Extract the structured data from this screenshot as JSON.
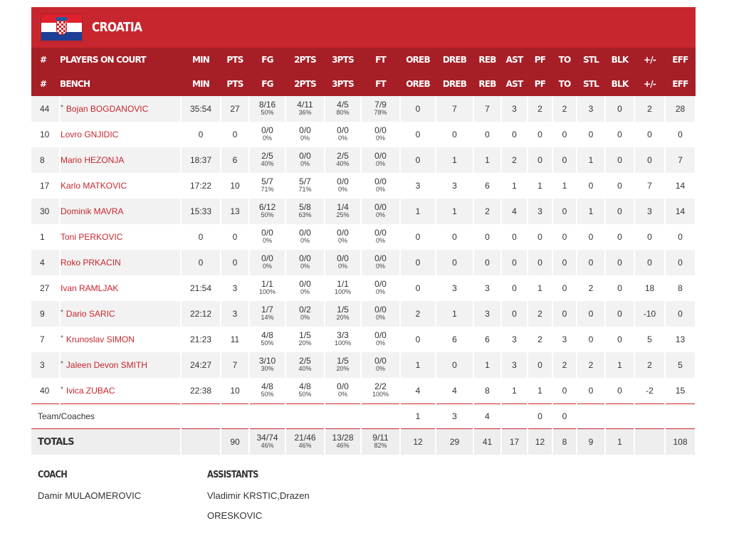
{
  "team": {
    "name": "CROATIA",
    "flag_colors": [
      "#e0202d",
      "#ffffff",
      "#1c3f94"
    ]
  },
  "columns": [
    "MIN",
    "PTS",
    "FG",
    "2PTS",
    "3PTS",
    "FT",
    "OREB",
    "DREB",
    "REB",
    "AST",
    "PF",
    "TO",
    "STL",
    "BLK",
    "+/-",
    "EFF"
  ],
  "header_rows": [
    {
      "hash": "#",
      "label": "PLAYERS ON COURT"
    },
    {
      "hash": "#",
      "label": "BENCH"
    }
  ],
  "players": [
    {
      "num": "44",
      "starter": true,
      "name": "Bojan BOGDANOVIC",
      "min": "35:54",
      "pts": "27",
      "fg": "8/16",
      "fg_pct": "50%",
      "p2": "4/11",
      "p2_pct": "36%",
      "p3": "4/5",
      "p3_pct": "80%",
      "ft": "7/9",
      "ft_pct": "78%",
      "oreb": "0",
      "dreb": "7",
      "reb": "7",
      "ast": "3",
      "pf": "2",
      "to": "2",
      "stl": "3",
      "blk": "0",
      "pm": "2",
      "eff": "28"
    },
    {
      "num": "10",
      "starter": false,
      "name": "Lovro GNJIDIC",
      "min": "0",
      "pts": "0",
      "fg": "0/0",
      "fg_pct": "0%",
      "p2": "0/0",
      "p2_pct": "0%",
      "p3": "0/0",
      "p3_pct": "0%",
      "ft": "0/0",
      "ft_pct": "0%",
      "oreb": "0",
      "dreb": "0",
      "reb": "0",
      "ast": "0",
      "pf": "0",
      "to": "0",
      "stl": "0",
      "blk": "0",
      "pm": "0",
      "eff": "0"
    },
    {
      "num": "8",
      "starter": false,
      "name": "Mario HEZONJA",
      "min": "18:37",
      "pts": "6",
      "fg": "2/5",
      "fg_pct": "40%",
      "p2": "0/0",
      "p2_pct": "0%",
      "p3": "2/5",
      "p3_pct": "40%",
      "ft": "0/0",
      "ft_pct": "0%",
      "oreb": "0",
      "dreb": "1",
      "reb": "1",
      "ast": "2",
      "pf": "0",
      "to": "0",
      "stl": "1",
      "blk": "0",
      "pm": "0",
      "eff": "7"
    },
    {
      "num": "17",
      "starter": false,
      "name": "Karlo MATKOVIC",
      "min": "17:22",
      "pts": "10",
      "fg": "5/7",
      "fg_pct": "71%",
      "p2": "5/7",
      "p2_pct": "71%",
      "p3": "0/0",
      "p3_pct": "0%",
      "ft": "0/0",
      "ft_pct": "0%",
      "oreb": "3",
      "dreb": "3",
      "reb": "6",
      "ast": "1",
      "pf": "1",
      "to": "1",
      "stl": "0",
      "blk": "0",
      "pm": "7",
      "eff": "14"
    },
    {
      "num": "30",
      "starter": false,
      "name": "Dominik MAVRA",
      "min": "15:33",
      "pts": "13",
      "fg": "6/12",
      "fg_pct": "50%",
      "p2": "5/8",
      "p2_pct": "63%",
      "p3": "1/4",
      "p3_pct": "25%",
      "ft": "0/0",
      "ft_pct": "0%",
      "oreb": "1",
      "dreb": "1",
      "reb": "2",
      "ast": "4",
      "pf": "3",
      "to": "0",
      "stl": "1",
      "blk": "0",
      "pm": "3",
      "eff": "14"
    },
    {
      "num": "1",
      "starter": false,
      "name": "Toni PERKOVIC",
      "min": "0",
      "pts": "0",
      "fg": "0/0",
      "fg_pct": "0%",
      "p2": "0/0",
      "p2_pct": "0%",
      "p3": "0/0",
      "p3_pct": "0%",
      "ft": "0/0",
      "ft_pct": "0%",
      "oreb": "0",
      "dreb": "0",
      "reb": "0",
      "ast": "0",
      "pf": "0",
      "to": "0",
      "stl": "0",
      "blk": "0",
      "pm": "0",
      "eff": "0"
    },
    {
      "num": "4",
      "starter": false,
      "name": "Roko PRKACIN",
      "min": "0",
      "pts": "0",
      "fg": "0/0",
      "fg_pct": "0%",
      "p2": "0/0",
      "p2_pct": "0%",
      "p3": "0/0",
      "p3_pct": "0%",
      "ft": "0/0",
      "ft_pct": "0%",
      "oreb": "0",
      "dreb": "0",
      "reb": "0",
      "ast": "0",
      "pf": "0",
      "to": "0",
      "stl": "0",
      "blk": "0",
      "pm": "0",
      "eff": "0"
    },
    {
      "num": "27",
      "starter": false,
      "name": "Ivan RAMLJAK",
      "min": "21:54",
      "pts": "3",
      "fg": "1/1",
      "fg_pct": "100%",
      "p2": "0/0",
      "p2_pct": "0%",
      "p3": "1/1",
      "p3_pct": "100%",
      "ft": "0/0",
      "ft_pct": "0%",
      "oreb": "0",
      "dreb": "3",
      "reb": "3",
      "ast": "0",
      "pf": "1",
      "to": "0",
      "stl": "2",
      "blk": "0",
      "pm": "18",
      "eff": "8"
    },
    {
      "num": "9",
      "starter": true,
      "name": "Dario SARIC",
      "min": "22:12",
      "pts": "3",
      "fg": "1/7",
      "fg_pct": "14%",
      "p2": "0/2",
      "p2_pct": "0%",
      "p3": "1/5",
      "p3_pct": "20%",
      "ft": "0/0",
      "ft_pct": "0%",
      "oreb": "2",
      "dreb": "1",
      "reb": "3",
      "ast": "0",
      "pf": "2",
      "to": "0",
      "stl": "0",
      "blk": "0",
      "pm": "-10",
      "eff": "0"
    },
    {
      "num": "7",
      "starter": true,
      "name": "Krunoslav SIMON",
      "min": "21:23",
      "pts": "11",
      "fg": "4/8",
      "fg_pct": "50%",
      "p2": "1/5",
      "p2_pct": "20%",
      "p3": "3/3",
      "p3_pct": "100%",
      "ft": "0/0",
      "ft_pct": "0%",
      "oreb": "0",
      "dreb": "6",
      "reb": "6",
      "ast": "3",
      "pf": "2",
      "to": "3",
      "stl": "0",
      "blk": "0",
      "pm": "5",
      "eff": "13"
    },
    {
      "num": "3",
      "starter": true,
      "name": "Jaleen Devon SMITH",
      "min": "24:27",
      "pts": "7",
      "fg": "3/10",
      "fg_pct": "30%",
      "p2": "2/5",
      "p2_pct": "40%",
      "p3": "1/5",
      "p3_pct": "20%",
      "ft": "0/0",
      "ft_pct": "0%",
      "oreb": "1",
      "dreb": "0",
      "reb": "1",
      "ast": "3",
      "pf": "0",
      "to": "2",
      "stl": "2",
      "blk": "1",
      "pm": "2",
      "eff": "5"
    },
    {
      "num": "40",
      "starter": true,
      "name": "Ivica ZUBAC",
      "min": "22:38",
      "pts": "10",
      "fg": "4/8",
      "fg_pct": "50%",
      "p2": "4/8",
      "p2_pct": "50%",
      "p3": "0/0",
      "p3_pct": "0%",
      "ft": "2/2",
      "ft_pct": "100%",
      "oreb": "4",
      "dreb": "4",
      "reb": "8",
      "ast": "1",
      "pf": "1",
      "to": "0",
      "stl": "0",
      "blk": "0",
      "pm": "-2",
      "eff": "15"
    }
  ],
  "team_coaches": {
    "label": "Team/Coaches",
    "oreb": "1",
    "dreb": "3",
    "reb": "4",
    "ast": "",
    "pf": "0",
    "to": "0",
    "stl": "",
    "blk": "",
    "pm": "",
    "eff": ""
  },
  "totals": {
    "label": "TOTALS",
    "min": "",
    "pts": "90",
    "fg": "34/74",
    "fg_pct": "46%",
    "p2": "21/46",
    "p2_pct": "46%",
    "p3": "13/28",
    "p3_pct": "46%",
    "ft": "9/11",
    "ft_pct": "82%",
    "oreb": "12",
    "dreb": "29",
    "reb": "41",
    "ast": "17",
    "pf": "12",
    "to": "8",
    "stl": "9",
    "blk": "1",
    "pm": "",
    "eff": "108"
  },
  "staff": {
    "coach_title": "COACH",
    "coach_name": "Damir MULAOMEROVIC",
    "assistants_title": "ASSISTANTS",
    "assistants_line1": "Vladimir KRSTIC,Drazen",
    "assistants_line2": "ORESKOVIC"
  },
  "star_symbol": "*"
}
